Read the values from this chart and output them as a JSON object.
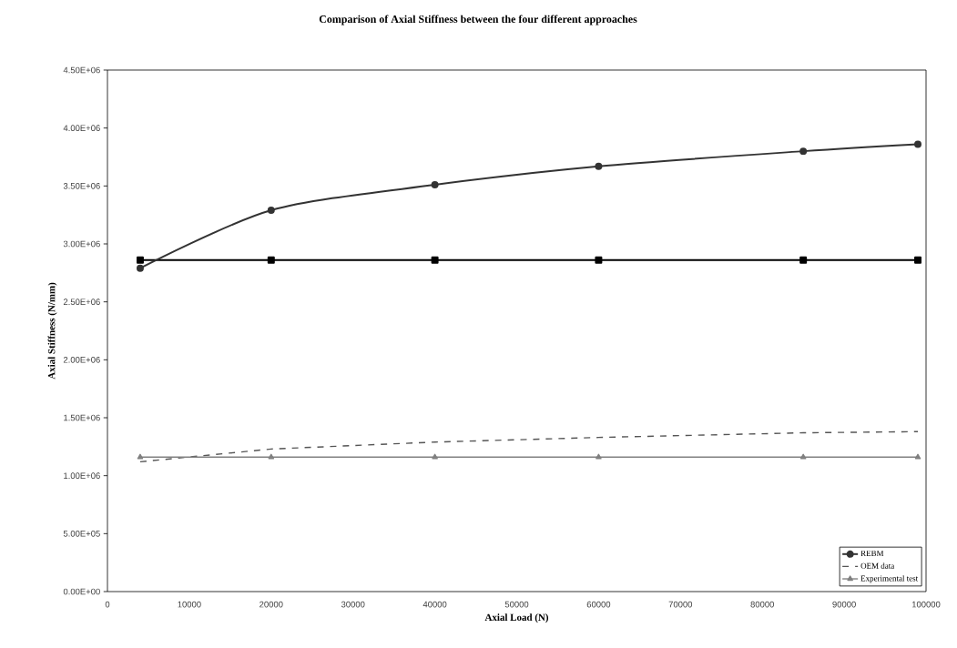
{
  "chart_data": {
    "type": "line",
    "title": "Comparison of Axial Stiffness between the four different approaches",
    "xlabel": "Axial Load (N)",
    "ylabel": "Axial Stiffness (N/mm)",
    "x": [
      4000,
      20000,
      40000,
      60000,
      85000,
      99000
    ],
    "series": [
      {
        "color": "#000000",
        "marker": "square",
        "line_style": "solid",
        "values": [
          2860000,
          2860000,
          2860000,
          2860000,
          2860000,
          2860000
        ]
      },
      {
        "name": "REBM",
        "color": "#333333",
        "marker": "circle",
        "line_style": "solid",
        "values": [
          2790000,
          3290000,
          3510000,
          3670000,
          3800000,
          3860000
        ]
      },
      {
        "name": "OEM data",
        "color": "#555555",
        "marker": "none",
        "line_style": "dashed",
        "values": [
          1120000,
          1230000,
          1290000,
          1330000,
          1370000,
          1380000
        ]
      },
      {
        "name": "Experimental test",
        "color": "#808080",
        "marker": "triangle",
        "line_style": "solid",
        "values": [
          1160000,
          1160000,
          1160000,
          1160000,
          1160000,
          1160000
        ]
      }
    ],
    "xlim": [
      0,
      100000
    ],
    "xticks": [
      0,
      10000,
      20000,
      30000,
      40000,
      50000,
      60000,
      70000,
      80000,
      90000,
      100000
    ],
    "ylim": [
      0,
      4500000
    ],
    "yticks": [
      {
        "value": 0,
        "label": "0.00E+00"
      },
      {
        "value": 500000,
        "label": "5.00E+05"
      },
      {
        "value": 1000000,
        "label": "1.00E+06"
      },
      {
        "value": 1500000,
        "label": "1.50E+06"
      },
      {
        "value": 2000000,
        "label": "2.00E+06"
      },
      {
        "value": 2500000,
        "label": "2.50E+06"
      },
      {
        "value": 3000000,
        "label": "3.00E+06"
      },
      {
        "value": 3500000,
        "label": "3.50E+06"
      },
      {
        "value": 4000000,
        "label": "4.00E+06"
      },
      {
        "value": 4500000,
        "label": "4.50E+06"
      }
    ],
    "grid": false,
    "legend": "bottom right"
  }
}
